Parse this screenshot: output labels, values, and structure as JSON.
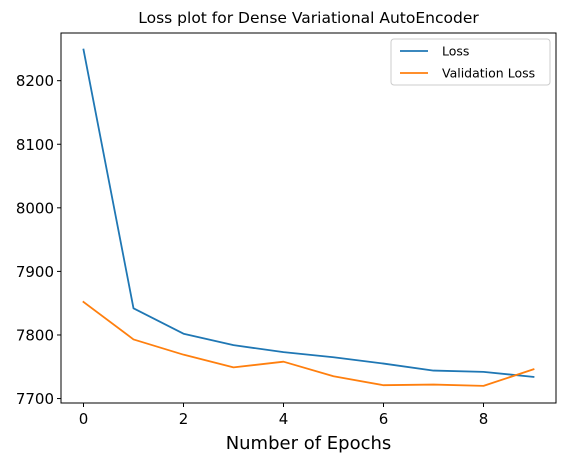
{
  "chart_data": {
    "type": "line",
    "title": "Loss plot for Dense Variational AutoEncoder",
    "xlabel": "Number of Epochs",
    "ylabel": "",
    "x": [
      0,
      1,
      2,
      3,
      4,
      5,
      6,
      7,
      8,
      9
    ],
    "series": [
      {
        "name": "Loss",
        "color": "#1f77b4",
        "values": [
          8249,
          7842,
          7802,
          7784,
          7773,
          7765,
          7755,
          7744,
          7742,
          7734
        ]
      },
      {
        "name": "Validation Loss",
        "color": "#ff7f0e",
        "values": [
          7852,
          7793,
          7769,
          7749,
          7758,
          7735,
          7721,
          7722,
          7720,
          7746
        ]
      }
    ],
    "xlim": [
      -0.45,
      9.45
    ],
    "ylim": [
      7693,
      8275
    ],
    "x_ticks": [
      0,
      2,
      4,
      6,
      8
    ],
    "y_ticks": [
      7700,
      7800,
      7900,
      8000,
      8100,
      8200
    ],
    "grid": false,
    "legend_position": "top-right"
  }
}
